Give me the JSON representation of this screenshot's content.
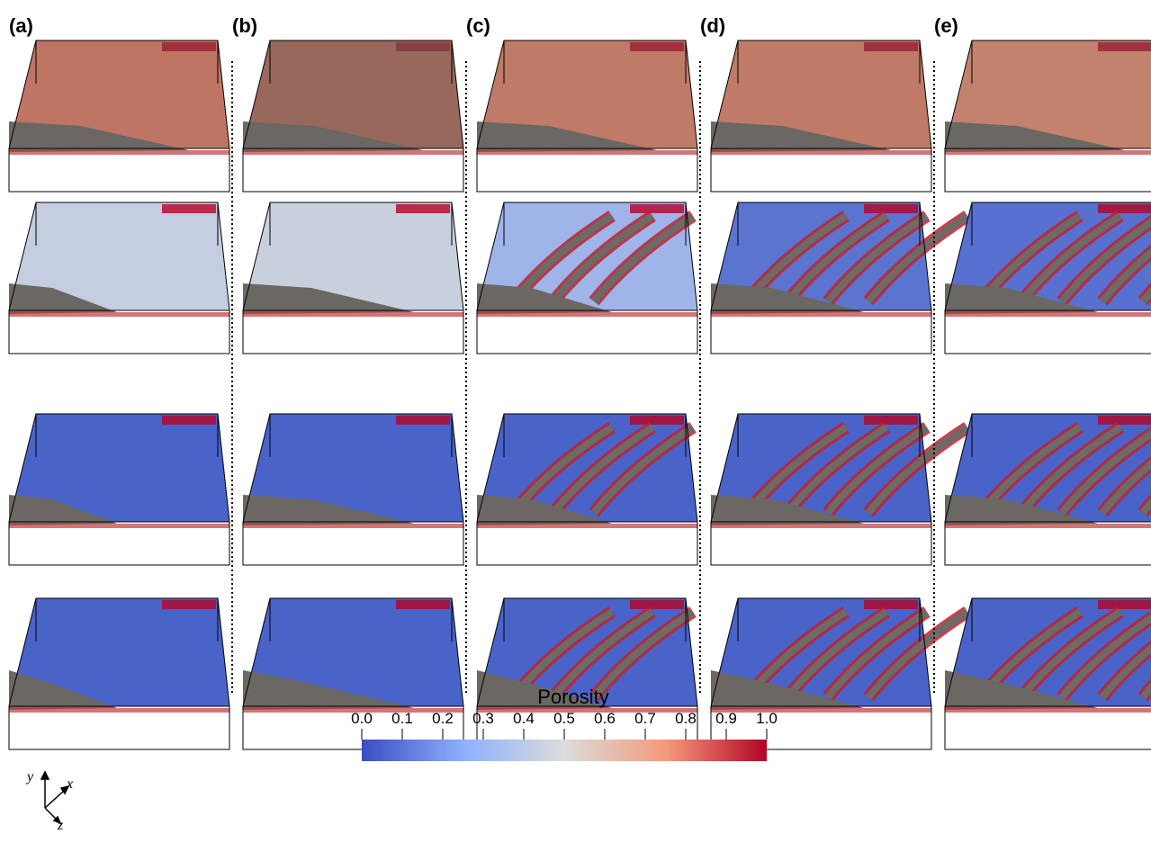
{
  "panels": [
    {
      "label": "(a)"
    },
    {
      "label": "(b)"
    },
    {
      "label": "(c)"
    },
    {
      "label": "(d)"
    },
    {
      "label": "(e)"
    }
  ],
  "colorbar": {
    "title": "Porosity",
    "lim": [
      0,
      1
    ],
    "ticks": [
      {
        "value": 0,
        "label": "0.0"
      },
      {
        "value": 0.1,
        "label": "0.1"
      },
      {
        "value": 0.2,
        "label": "0.2"
      },
      {
        "value": 0.3,
        "label": "0.3"
      },
      {
        "value": 0.4,
        "label": "0.4"
      },
      {
        "value": 0.5,
        "label": "0.5"
      },
      {
        "value": 0.6,
        "label": "0.6"
      },
      {
        "value": 0.7,
        "label": "0.7"
      },
      {
        "value": 0.8,
        "label": "0.8"
      },
      {
        "value": 0.9,
        "label": "0.9"
      },
      {
        "value": 1,
        "label": "1.0"
      }
    ]
  },
  "axes": {
    "y": "y",
    "x": "x",
    "z": "z"
  }
}
